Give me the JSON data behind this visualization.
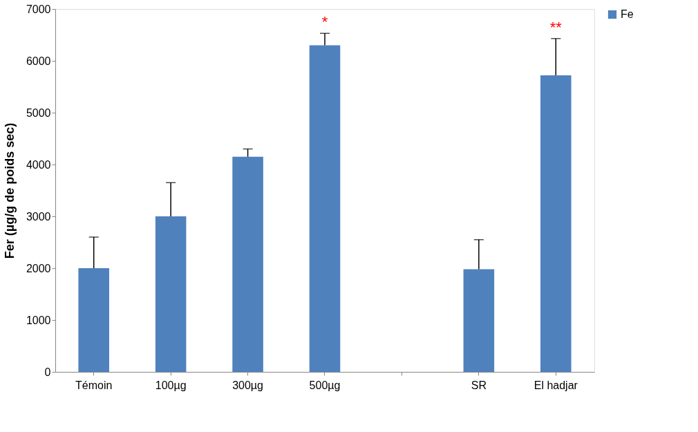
{
  "chart_data": {
    "type": "bar",
    "ylabel": "Fer (µg/g de poids sec)",
    "categories": [
      "Témoin",
      "100µg",
      "300µg",
      "500µg",
      null,
      "SR",
      "El hadjar"
    ],
    "series": [
      {
        "name": "Fe",
        "color": "#4f81bd",
        "values": [
          2000,
          3000,
          4150,
          6300,
          null,
          1980,
          5720
        ],
        "errors": [
          [
            2000,
            2600
          ],
          [
            3000,
            3650
          ],
          [
            4150,
            4300
          ],
          [
            6300,
            6530
          ],
          null,
          [
            1980,
            2550
          ],
          [
            5720,
            6430
          ]
        ],
        "value_labels": [
          null,
          null,
          null,
          "*",
          null,
          null,
          "**"
        ]
      }
    ],
    "ylim": [
      0,
      7000
    ],
    "yticks": [
      0,
      1000,
      2000,
      3000,
      4000,
      5000,
      6000,
      7000
    ],
    "grid": false,
    "legend": "right"
  }
}
